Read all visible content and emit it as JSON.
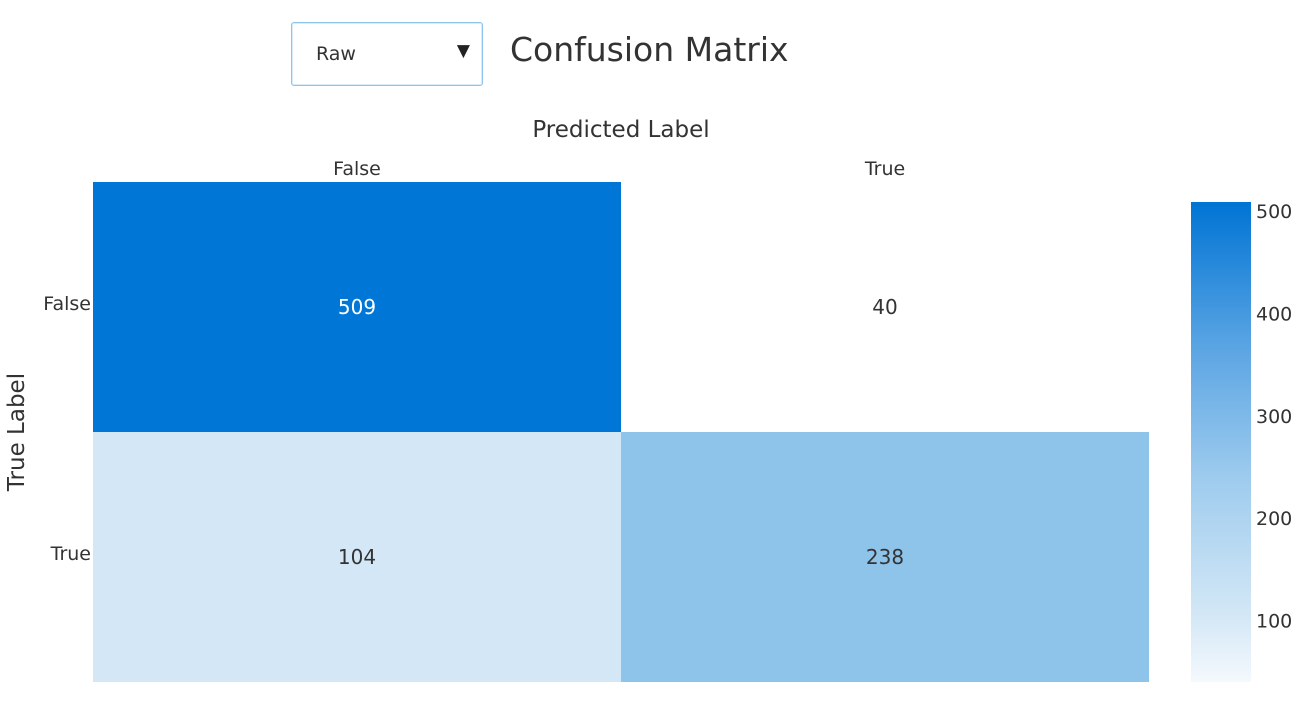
{
  "title": "Confusion Matrix",
  "view_select": {
    "selected": "Raw",
    "arrow_icon": "▼"
  },
  "colors": {
    "scale_high": "#0074d4",
    "scale_low": "#f4f9fd",
    "text_dark": "#333333",
    "text_light": "#ffffff"
  },
  "chart_data": {
    "type": "heatmap",
    "title": "Confusion Matrix",
    "xlabel": "Predicted Label",
    "ylabel": "True Label",
    "x_categories": [
      "False",
      "True"
    ],
    "y_categories": [
      "False",
      "True"
    ],
    "cells": [
      {
        "true_label": "False",
        "predicted_label": "False",
        "value": 509,
        "color": "#0077d6"
      },
      {
        "true_label": "False",
        "predicted_label": "True",
        "value": 40,
        "color": "#ffffff"
      },
      {
        "true_label": "True",
        "predicted_label": "False",
        "value": 104,
        "color": "#d3e7f6"
      },
      {
        "true_label": "True",
        "predicted_label": "True",
        "value": 238,
        "color": "#8ec3ea"
      }
    ],
    "colorbar": {
      "min": 40,
      "max": 509,
      "ticks": [
        100,
        200,
        300,
        400,
        500
      ]
    }
  }
}
